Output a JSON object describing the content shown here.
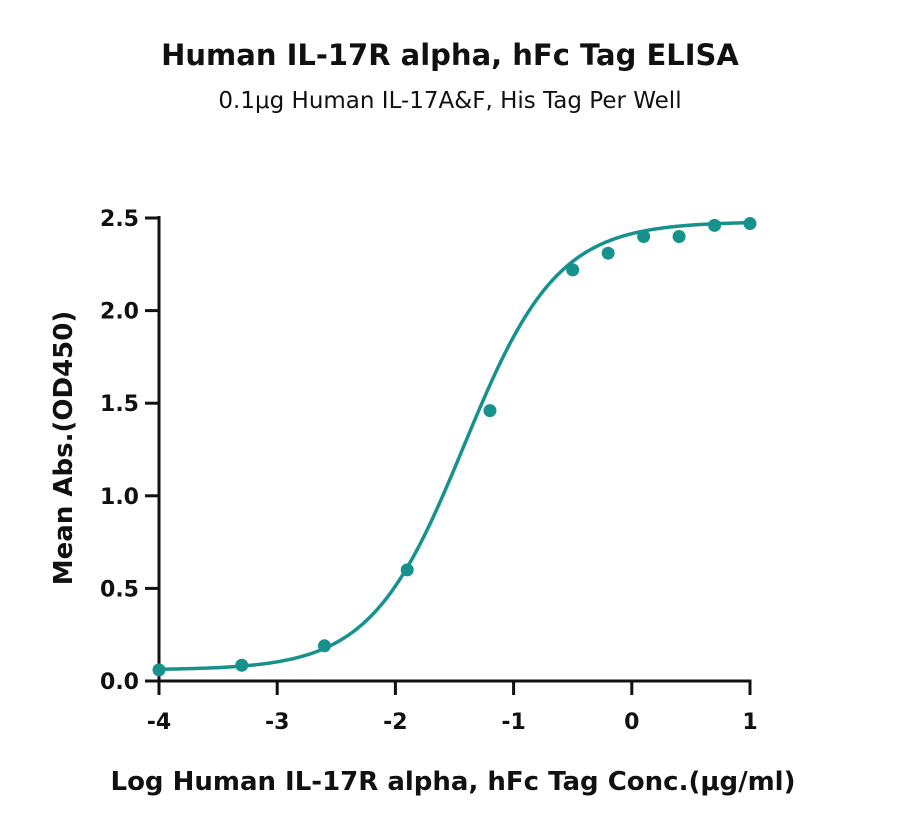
{
  "chart_data": {
    "type": "scatter",
    "title": "Human IL-17R alpha, hFc Tag ELISA",
    "subtitle": "0.1μg Human IL-17A&F, His Tag Per Well",
    "xlabel": "Log Human IL-17R alpha, hFc Tag Conc.(μg/ml)",
    "ylabel": "Mean Abs.(OD450)",
    "xlim": [
      -4,
      1
    ],
    "ylim": [
      0,
      2.5
    ],
    "x_ticks": [
      -4,
      -3,
      -2,
      -1,
      0,
      1
    ],
    "x_tick_labels": [
      "-4",
      "-3",
      "-2",
      "-1",
      "0",
      "1"
    ],
    "y_ticks": [
      0,
      0.5,
      1.0,
      1.5,
      2.0,
      2.5
    ],
    "y_tick_labels": [
      "0.0",
      "0.5",
      "1.0",
      "1.5",
      "2.0",
      "2.5"
    ],
    "color": "#17918c",
    "grid": false,
    "series": [
      {
        "x": [
          -4.0,
          -3.3,
          -2.6,
          -1.9,
          -1.2,
          -0.5,
          -0.2,
          0.1,
          0.4,
          0.7,
          1.0
        ],
        "y": [
          0.06,
          0.085,
          0.19,
          0.6,
          1.46,
          2.22,
          2.31,
          2.4,
          2.4,
          2.46,
          2.47
        ]
      }
    ],
    "fit_curve": {
      "model": "4PL",
      "bottom": 0.06,
      "top": 2.48,
      "log_ec50": -1.42,
      "hill_slope": 1.1
    }
  }
}
